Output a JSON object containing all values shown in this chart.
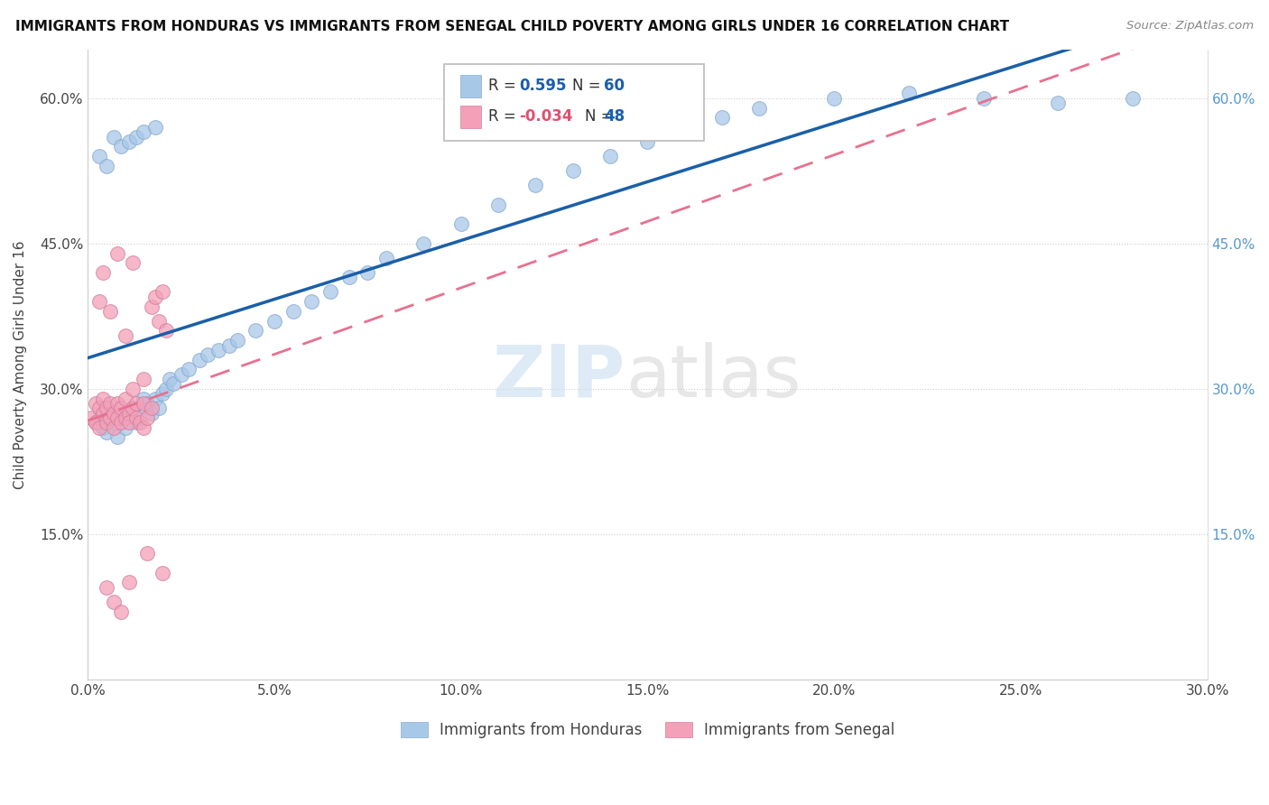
{
  "title": "IMMIGRANTS FROM HONDURAS VS IMMIGRANTS FROM SENEGAL CHILD POVERTY AMONG GIRLS UNDER 16 CORRELATION CHART",
  "source": "Source: ZipAtlas.com",
  "ylabel": "Child Poverty Among Girls Under 16",
  "xlim": [
    0.0,
    0.3
  ],
  "ylim": [
    0.0,
    0.65
  ],
  "x_tick_labels": [
    "0.0%",
    "5.0%",
    "10.0%",
    "15.0%",
    "20.0%",
    "25.0%",
    "30.0%"
  ],
  "x_tick_values": [
    0.0,
    0.05,
    0.1,
    0.15,
    0.2,
    0.25,
    0.3
  ],
  "y_tick_labels_left": [
    "",
    "15.0%",
    "30.0%",
    "45.0%",
    "60.0%"
  ],
  "y_tick_values_left": [
    0.0,
    0.15,
    0.3,
    0.45,
    0.6
  ],
  "y_tick_labels_right": [
    "15.0%",
    "30.0%",
    "45.0%",
    "60.0%"
  ],
  "y_tick_values_right": [
    0.15,
    0.3,
    0.45,
    0.6
  ],
  "legend_r1_val": "0.595",
  "legend_n1_val": "60",
  "legend_r2_val": "-0.034",
  "legend_n2_val": "48",
  "blue_color": "#a8c8e8",
  "pink_color": "#f4a0b8",
  "blue_line_color": "#1a5fa8",
  "pink_line_color": "#e87090",
  "watermark_zip": "ZIP",
  "watermark_atlas": "atlas",
  "honduras_x": [
    0.002,
    0.003,
    0.004,
    0.005,
    0.006,
    0.007,
    0.008,
    0.009,
    0.01,
    0.011,
    0.012,
    0.013,
    0.014,
    0.015,
    0.016,
    0.017,
    0.018,
    0.019,
    0.02,
    0.021,
    0.022,
    0.023,
    0.025,
    0.027,
    0.03,
    0.032,
    0.035,
    0.038,
    0.04,
    0.045,
    0.05,
    0.055,
    0.06,
    0.065,
    0.07,
    0.075,
    0.08,
    0.09,
    0.1,
    0.11,
    0.12,
    0.13,
    0.14,
    0.15,
    0.16,
    0.17,
    0.18,
    0.2,
    0.22,
    0.24,
    0.26,
    0.28,
    0.003,
    0.005,
    0.007,
    0.009,
    0.011,
    0.013,
    0.015,
    0.018
  ],
  "honduras_y": [
    0.265,
    0.27,
    0.26,
    0.255,
    0.275,
    0.265,
    0.25,
    0.27,
    0.26,
    0.275,
    0.28,
    0.265,
    0.28,
    0.29,
    0.285,
    0.275,
    0.29,
    0.28,
    0.295,
    0.3,
    0.31,
    0.305,
    0.315,
    0.32,
    0.33,
    0.335,
    0.34,
    0.345,
    0.35,
    0.36,
    0.37,
    0.38,
    0.39,
    0.4,
    0.415,
    0.42,
    0.435,
    0.45,
    0.47,
    0.49,
    0.51,
    0.525,
    0.54,
    0.555,
    0.57,
    0.58,
    0.59,
    0.6,
    0.605,
    0.6,
    0.595,
    0.6,
    0.54,
    0.53,
    0.56,
    0.55,
    0.555,
    0.56,
    0.565,
    0.57
  ],
  "senegal_x": [
    0.001,
    0.002,
    0.002,
    0.003,
    0.003,
    0.004,
    0.004,
    0.005,
    0.005,
    0.006,
    0.006,
    0.007,
    0.007,
    0.008,
    0.008,
    0.009,
    0.009,
    0.01,
    0.01,
    0.011,
    0.011,
    0.012,
    0.012,
    0.013,
    0.013,
    0.014,
    0.015,
    0.015,
    0.016,
    0.017,
    0.017,
    0.018,
    0.019,
    0.02,
    0.021,
    0.012,
    0.008,
    0.006,
    0.004,
    0.003,
    0.015,
    0.01,
    0.007,
    0.005,
    0.02,
    0.016,
    0.009,
    0.011
  ],
  "senegal_y": [
    0.27,
    0.265,
    0.285,
    0.28,
    0.26,
    0.275,
    0.29,
    0.265,
    0.28,
    0.27,
    0.285,
    0.26,
    0.275,
    0.27,
    0.285,
    0.265,
    0.28,
    0.27,
    0.29,
    0.275,
    0.265,
    0.28,
    0.3,
    0.27,
    0.285,
    0.265,
    0.26,
    0.285,
    0.27,
    0.28,
    0.385,
    0.395,
    0.37,
    0.4,
    0.36,
    0.43,
    0.44,
    0.38,
    0.42,
    0.39,
    0.31,
    0.355,
    0.08,
    0.095,
    0.11,
    0.13,
    0.07,
    0.1
  ]
}
